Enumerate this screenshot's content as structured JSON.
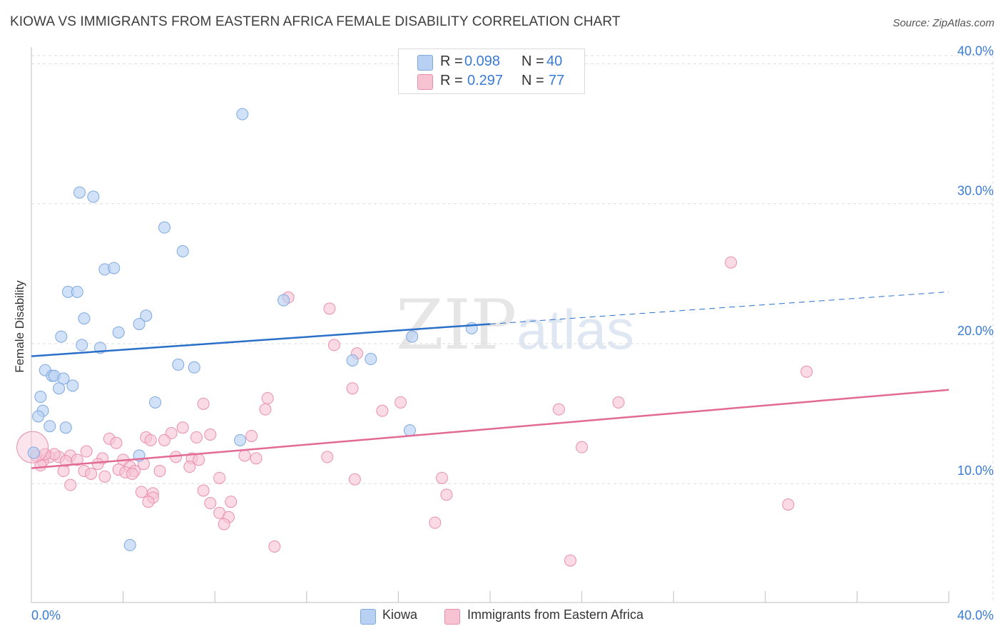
{
  "title": "KIOWA VS IMMIGRANTS FROM EASTERN AFRICA FEMALE DISABILITY CORRELATION CHART",
  "source": "Source: ZipAtlas.com",
  "watermark": {
    "zip": "ZIP",
    "atlas": "atlas"
  },
  "colors": {
    "kiowa_fill": "#b8d1f3",
    "kiowa_stroke": "#7ea8e0",
    "kiowa_line": "#2a6fc8",
    "imm_fill": "#f7c3d3",
    "imm_stroke": "#ea8fae",
    "imm_line": "#e26a94",
    "tick_text": "#3a7bd5",
    "grid": "#dcdcdc"
  },
  "legend_top": {
    "rows": [
      {
        "r_label": "R =",
        "r_value": "0.098",
        "n_label": "N =",
        "n_value": "40"
      },
      {
        "r_label": "R =",
        "r_value": "0.297",
        "n_label": "N =",
        "n_value": "77"
      }
    ]
  },
  "legend_bottom": {
    "kiowa": "Kiowa",
    "immigrants": "Immigrants from Eastern Africa"
  },
  "chart_data": {
    "type": "scatter",
    "title": "KIOWA VS IMMIGRANTS FROM EASTERN AFRICA FEMALE DISABILITY CORRELATION CHART",
    "xlabel": "",
    "ylabel": "Female Disability",
    "xlim": [
      0,
      40
    ],
    "ylim": [
      1.5,
      41.5
    ],
    "x_tick_labels": [
      "0.0%",
      "40.0%"
    ],
    "y_ticks": [
      10,
      20,
      30,
      40
    ],
    "y_tick_labels": [
      "10.0%",
      "20.0%",
      "30.0%",
      "40.0%"
    ],
    "grid": true,
    "series": [
      {
        "name": "Kiowa",
        "R": 0.098,
        "N": 40,
        "trend": {
          "x0": 0,
          "y0": 19.1,
          "x1": 20.0,
          "y1": 21.4,
          "dashed_to_x": 40,
          "dashed_to_y": 23.7
        },
        "points": [
          [
            9.2,
            36.4
          ],
          [
            2.1,
            30.8
          ],
          [
            2.7,
            30.5
          ],
          [
            5.8,
            28.3
          ],
          [
            6.6,
            26.6
          ],
          [
            3.2,
            25.3
          ],
          [
            3.6,
            25.4
          ],
          [
            1.6,
            23.7
          ],
          [
            2.0,
            23.7
          ],
          [
            11.0,
            23.1
          ],
          [
            2.3,
            21.8
          ],
          [
            5.0,
            22.0
          ],
          [
            4.7,
            21.4
          ],
          [
            19.2,
            21.1
          ],
          [
            3.8,
            20.8
          ],
          [
            1.3,
            20.5
          ],
          [
            16.6,
            20.5
          ],
          [
            2.2,
            19.9
          ],
          [
            3.0,
            19.7
          ],
          [
            14.0,
            18.8
          ],
          [
            14.8,
            18.9
          ],
          [
            6.4,
            18.5
          ],
          [
            7.1,
            18.3
          ],
          [
            0.6,
            18.1
          ],
          [
            0.9,
            17.7
          ],
          [
            1.0,
            17.7
          ],
          [
            1.4,
            17.5
          ],
          [
            1.8,
            17.0
          ],
          [
            1.2,
            16.8
          ],
          [
            0.4,
            16.2
          ],
          [
            5.4,
            15.8
          ],
          [
            0.5,
            15.2
          ],
          [
            0.3,
            14.8
          ],
          [
            0.8,
            14.1
          ],
          [
            1.5,
            14.0
          ],
          [
            16.5,
            13.8
          ],
          [
            9.1,
            13.1
          ],
          [
            4.7,
            12.0
          ],
          [
            0.1,
            12.2
          ],
          [
            4.3,
            5.6
          ]
        ]
      },
      {
        "name": "Immigrants from Eastern Africa",
        "R": 0.297,
        "N": 77,
        "trend": {
          "x0": 0,
          "y0": 11.1,
          "x1": 40,
          "y1": 16.7
        },
        "points": [
          [
            30.5,
            25.8
          ],
          [
            11.2,
            23.3
          ],
          [
            13.0,
            22.5
          ],
          [
            13.2,
            19.9
          ],
          [
            14.2,
            19.3
          ],
          [
            33.8,
            18.0
          ],
          [
            14.0,
            16.8
          ],
          [
            10.3,
            16.1
          ],
          [
            16.1,
            15.8
          ],
          [
            25.6,
            15.8
          ],
          [
            7.5,
            15.7
          ],
          [
            10.2,
            15.3
          ],
          [
            15.3,
            15.2
          ],
          [
            23.0,
            15.3
          ],
          [
            6.6,
            14.0
          ],
          [
            6.1,
            13.6
          ],
          [
            7.8,
            13.5
          ],
          [
            9.6,
            13.4
          ],
          [
            5.0,
            13.3
          ],
          [
            7.2,
            13.3
          ],
          [
            3.4,
            13.2
          ],
          [
            5.2,
            13.1
          ],
          [
            5.8,
            13.1
          ],
          [
            24.0,
            12.6
          ],
          [
            2.4,
            12.3
          ],
          [
            0.2,
            12.0
          ],
          [
            1.7,
            12.0
          ],
          [
            0.8,
            11.9
          ],
          [
            1.2,
            11.9
          ],
          [
            6.3,
            11.9
          ],
          [
            9.3,
            12.0
          ],
          [
            12.9,
            11.9
          ],
          [
            3.1,
            11.8
          ],
          [
            2.0,
            11.7
          ],
          [
            4.0,
            11.7
          ],
          [
            7.0,
            11.8
          ],
          [
            7.3,
            11.7
          ],
          [
            9.8,
            11.8
          ],
          [
            0.5,
            11.6
          ],
          [
            1.5,
            11.6
          ],
          [
            2.9,
            11.4
          ],
          [
            4.9,
            11.4
          ],
          [
            6.9,
            11.2
          ],
          [
            0.4,
            11.3
          ],
          [
            3.8,
            11.0
          ],
          [
            4.3,
            11.2
          ],
          [
            1.4,
            10.9
          ],
          [
            2.3,
            10.9
          ],
          [
            5.6,
            10.9
          ],
          [
            4.1,
            10.8
          ],
          [
            4.5,
            10.9
          ],
          [
            2.6,
            10.7
          ],
          [
            4.4,
            10.7
          ],
          [
            3.2,
            10.5
          ],
          [
            8.2,
            10.4
          ],
          [
            14.1,
            10.3
          ],
          [
            17.9,
            10.4
          ],
          [
            1.7,
            9.9
          ],
          [
            4.8,
            9.4
          ],
          [
            5.3,
            9.3
          ],
          [
            18.1,
            9.2
          ],
          [
            7.5,
            9.5
          ],
          [
            5.3,
            9.0
          ],
          [
            7.8,
            8.6
          ],
          [
            8.7,
            8.7
          ],
          [
            33.0,
            8.5
          ],
          [
            5.1,
            8.7
          ],
          [
            8.2,
            7.9
          ],
          [
            8.6,
            7.6
          ],
          [
            8.4,
            7.1
          ],
          [
            17.6,
            7.2
          ],
          [
            10.6,
            5.5
          ],
          [
            23.5,
            4.5
          ],
          [
            3.7,
            12.9
          ],
          [
            1.0,
            12.1
          ],
          [
            0.6,
            12.1
          ],
          [
            0.05,
            12.6
          ]
        ]
      }
    ]
  }
}
